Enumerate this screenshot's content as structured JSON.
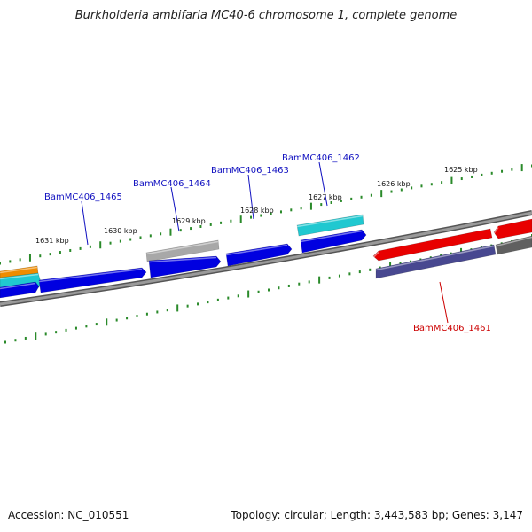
{
  "title": "Burkholderia ambifaria MC40-6 chromosome 1, complete genome",
  "footer": {
    "accession": "Accession: NC_010551",
    "summary": "Topology: circular; Length: 3,443,583 bp; Genes: 3,147"
  },
  "colors": {
    "tick": "#2a8a2a",
    "backbone": "#7a7a7a",
    "label_blue": "#1010c0",
    "label_red": "#cc0000",
    "gene_blue": "#0000e0",
    "gene_cyan": "#20c8d0",
    "gene_gray": "#a8a8a8",
    "gene_red": "#e80000",
    "gene_slate": "#484890",
    "gene_orange": "#f08c00",
    "gene_darkgray": "#606060"
  },
  "scale_labels": [
    "1631 kbp",
    "1630 kbp",
    "1629 kbp",
    "1628 kbp",
    "1627 kbp",
    "1626 kbp",
    "1625 kbp"
  ],
  "gene_labels": [
    {
      "text": "BamMC406_1465",
      "color": "blue"
    },
    {
      "text": "BamMC406_1464",
      "color": "blue"
    },
    {
      "text": "BamMC406_1463",
      "color": "blue"
    },
    {
      "text": "BamMC406_1462",
      "color": "blue"
    },
    {
      "text": "BamMC406_1461",
      "color": "red"
    }
  ]
}
